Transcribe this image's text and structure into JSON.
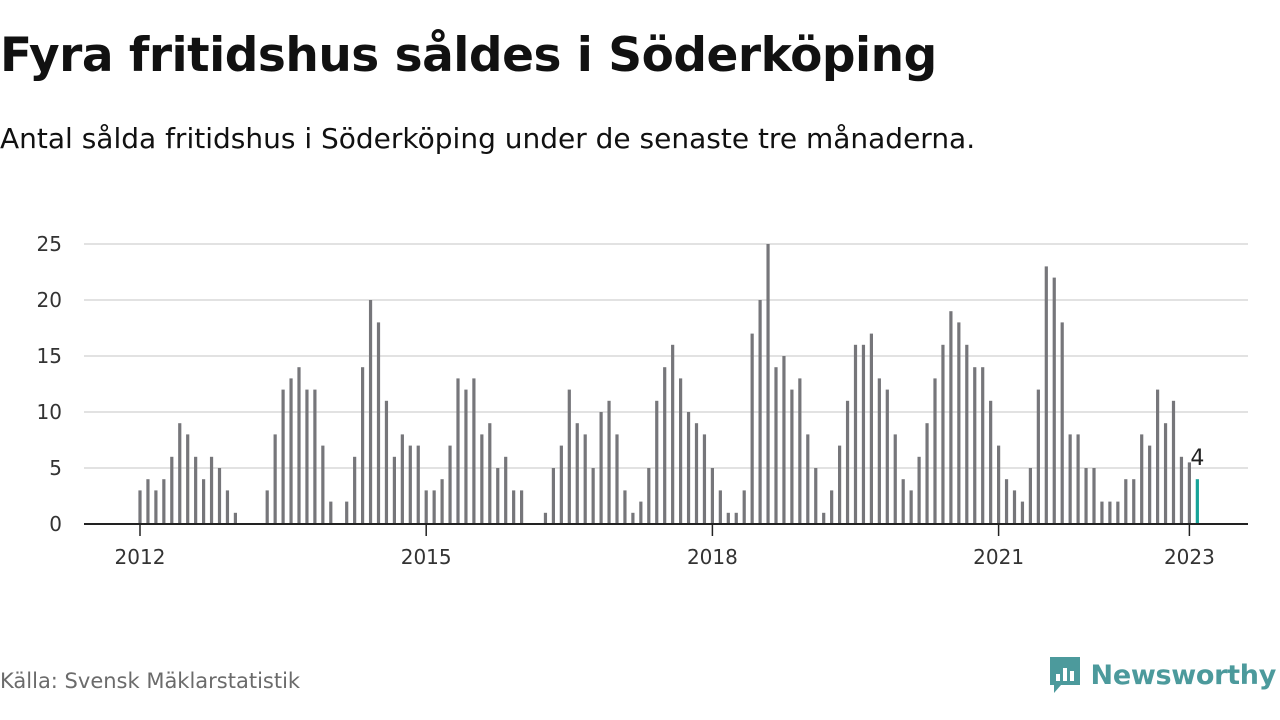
{
  "title": "Fyra fritidshus såldes i Söderköping",
  "subtitle": "Antal sålda fritidshus i Söderköping under de senaste tre månaderna.",
  "source": "Källa: Svensk Mäklarstatistik",
  "brand": {
    "name": "Newsworthy",
    "icon": "newsworthy-logo-icon",
    "color": "#4c9a9c"
  },
  "chart_data": {
    "type": "bar",
    "title": "Fyra fritidshus såldes i Söderköping",
    "subtitle": "Antal sålda fritidshus i Söderköping under de senaste tre månaderna.",
    "xlabel": "",
    "ylabel": "",
    "ylim": [
      0,
      25
    ],
    "y_ticks": [
      "0",
      "5",
      "10",
      "15",
      "20",
      "25"
    ],
    "x_ticks": [
      "2012",
      "2015",
      "2018",
      "2021",
      "2023"
    ],
    "grid": true,
    "bar_color": "#76767a",
    "highlight_color": "#17a398",
    "highlight_label": "4",
    "series": [
      {
        "values": [
          3,
          4,
          3,
          4,
          6,
          9,
          8,
          6,
          4,
          6,
          5,
          3,
          1,
          null,
          null,
          null,
          3,
          8,
          12,
          13,
          14,
          12,
          12,
          7,
          2,
          null,
          2,
          6,
          14,
          20,
          18,
          11,
          6,
          8,
          7,
          7,
          3,
          3,
          4,
          7,
          13,
          12,
          13,
          8,
          9,
          5,
          6,
          3,
          3,
          null,
          null,
          1,
          5,
          7,
          12,
          9,
          8,
          5,
          10,
          11,
          8,
          3,
          1,
          2,
          5,
          11,
          14,
          16,
          13,
          10,
          9,
          8,
          5,
          3,
          1,
          1,
          3,
          17,
          20,
          25,
          14,
          15,
          12,
          13,
          8,
          5,
          1,
          3,
          7,
          11,
          16,
          16,
          17,
          13,
          12,
          8,
          4,
          3,
          6,
          9,
          13,
          16,
          19,
          18,
          16,
          14,
          14,
          11,
          7,
          4,
          3,
          2,
          5,
          12,
          23,
          22,
          18,
          8,
          8,
          5,
          5,
          2,
          2,
          2,
          4,
          4,
          8,
          7,
          12,
          9,
          11,
          6,
          5.5,
          4
        ]
      }
    ]
  }
}
